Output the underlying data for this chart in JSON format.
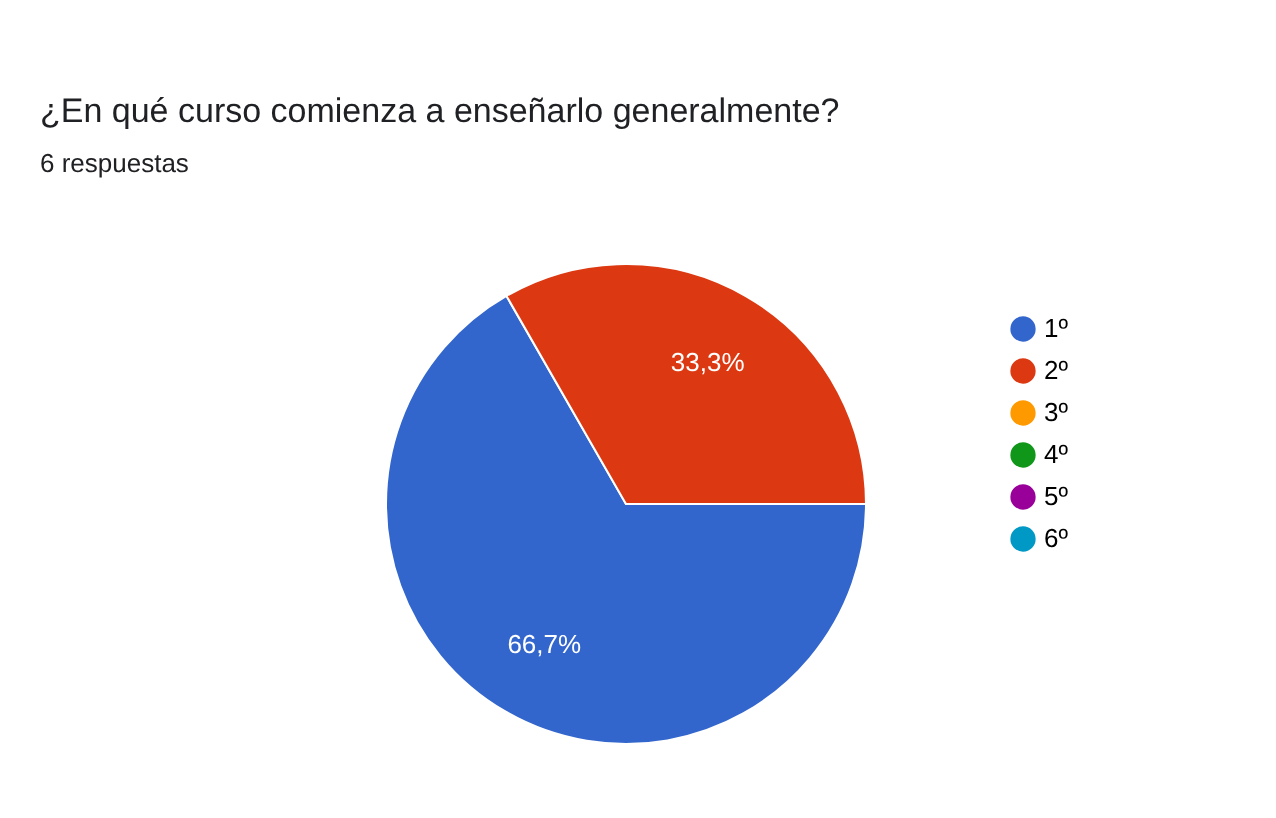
{
  "chart_data": {
    "type": "pie",
    "title": "¿En qué curso comienza a enseñarlo generalmente?",
    "subtitle": "6 respuestas",
    "categories": [
      "1º",
      "2º",
      "3º",
      "4º",
      "5º",
      "6º"
    ],
    "values": [
      66.7,
      33.3,
      0,
      0,
      0,
      0
    ],
    "value_labels": [
      "66,7%",
      "33,3%",
      null,
      null,
      null,
      null
    ],
    "colors": [
      "#3366cc",
      "#dc3912",
      "#ff9900",
      "#109618",
      "#990099",
      "#0099c6"
    ],
    "legend": "right"
  }
}
